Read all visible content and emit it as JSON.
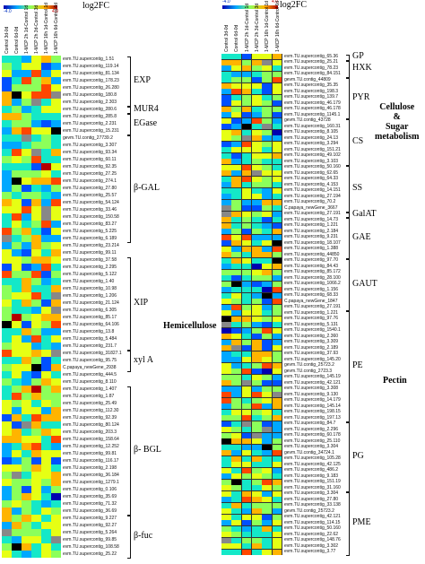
{
  "legend": {
    "title": "log2FC",
    "min_label": "-4.0",
    "max_label": "4.0"
  },
  "left_panel": {
    "columns": [
      "Control 3d-0d",
      "Control 6d-0d",
      "1-MCP 2h 1d-Control 1d",
      "1-MCP 2h 3d-Control 3d",
      "1-MCP 16h 1d-Control 1d",
      "1-MCP 16h 6d-Control 6d"
    ],
    "genes": [
      "evm.TU.supercontig_1.51",
      "evm.TU.supercontig_119.14",
      "evm.TU.supercontig_81.134",
      "evm.TU.supercontig_178.23",
      "evm.TU.supercontig_26.280",
      "evm.TU.supercontig_180.8",
      "evm.TU.supercontig_2.303",
      "evm.TU.supercontig_280.6",
      "evm.TU.supercontig_285.8",
      "evm.TU.supercontig_2.231",
      "evm.TU.supercontig_15.231",
      "gevm.TU.contig_27739.2",
      "evm.TU.supercontig_3.307",
      "evm.TU.supercontig_93.34",
      "evm.TU.supercontig_60.11",
      "evm.TU.supercontig_92.35",
      "evm.TU.supercontig_27.25",
      "evm.TU.supercontig_274.1",
      "evm.TU.supercontig_27.80",
      "evm.TU.supercontig_25.57",
      "evm.TU.supercontig_54.124",
      "evm.TU.supercontig_33.46",
      "evm.TU.supercontig_150.58",
      "evm.TU.supercontig_83.27",
      "evm.TU.supercontig_5.225",
      "evm.TU.supercontig_6.189",
      "evm.TU.supercontig_23.214",
      "evm.TU.supercontig_99.11",
      "evm.TU.supercontig_37.58",
      "evm.TU.supercontig_2.295",
      "evm.TU.supercontig_5.122",
      "evm.TU.supercontig_1.40",
      "evm.TU.supercontig_10.98",
      "evm.TU.supercontig_1.206",
      "evm.TU.supercontig_21.124",
      "evm.TU.supercontig_6.305",
      "evm.TU.supercontig_85.17",
      "evm.TU.supercontig_64.106",
      "evm.TU.supercontig_13.8",
      "evm.TU.supercontig_5.484",
      "evm.TU.supercontig_231.7",
      "evm.TU.supercontig_31827.1",
      "evm.TU.supercontig_95.75",
      "C.papaya_newGene_2938",
      "evm.TU.supercontig_444.5",
      "evm.TU.supercontig_8.110",
      "evm.TU.supercontig_1.407",
      "evm.TU.supercontig_1.87",
      "evm.TU.supercontig_25.49",
      "evm.TU.supercontig_112.30",
      "evm.TU.supercontig_92.39",
      "evm.TU.supercontig_80.124",
      "evm.TU.supercontig_203.3",
      "evm.TU.supercontig_158.64",
      "evm.TU.supercontig_12.252",
      "evm.TU.supercontig_99.81",
      "evm.TU.supercontig_116.17",
      "evm.TU.supercontig_2.198",
      "evm.TU.supercontig_36.184",
      "evm.TU.supercontig_1279.1",
      "evm.TU.supercontig_0.106",
      "evm.TU.supercontig_35.69",
      "evm.TU.supercontig_71.32",
      "evm.TU.supercontig_36.69",
      "evm.TU.supercontig_9.227",
      "evm.TU.supercontig_92.27",
      "evm.TU.supercontig_5.264",
      "evm.TU.supercontig_99.85",
      "evm.TU.supercontig_108.58",
      "evm.TU.supercontig_25.22"
    ],
    "groups": [
      {
        "label": "EXP"
      },
      {
        "label": "MUR4"
      },
      {
        "label": "EGase"
      },
      {
        "label": "β-GAL"
      },
      {
        "label": "XIP"
      },
      {
        "label": "xyl A"
      },
      {
        "label": "β- BGL"
      },
      {
        "label": "β-fuc"
      }
    ],
    "category": "Hemicellulose"
  },
  "right_panel": {
    "columns": [
      "Control 3d-0d",
      "Control 6d-0d",
      "1-MCP 2h 1d-Control 1d",
      "1-MCP 2h 3d-Control 3d",
      "1-MCP 16h 1d-Control 1d",
      "1-MCP 16h 6d-Control 6d"
    ],
    "genes": [
      "evm.TU.supercontig_65.36",
      "evm.TU.supercontig_25.21",
      "evm.TU.supercontig_78.23",
      "evm.TU.supercontig_84.151",
      "gevm.TU.contig_44809",
      "evm.TU.supercontig_35.35",
      "evm.TU.supercontig_198.3",
      "evm.TU.supercontig_139.7",
      "evm.TU.supercontig_46.179",
      "evm.TU.supercontig_46.178",
      "evm.TU.supercontig_1145.1",
      "gevm.TU.contig_43728",
      "evm.TU.supercontig_160.31",
      "evm.TU.supercontig_8.105",
      "evm.TU.supercontig_24.13",
      "evm.TU.supercontig_3.294",
      "evm.TU.supercontig_151.21",
      "evm.TU.supercontig_49.102",
      "evm.TU.supercontig_3.103",
      "evm.TU.supercontig_50.160",
      "evm.TU.supercontig_62.65",
      "evm.TU.supercontig_64.33",
      "evm.TU.supercontig_4.153",
      "evm.TU.supercontig_14.151",
      "evm.TU.supercontig_27.194",
      "evm.TU.supercontig_70.2",
      "C.papaya_newGene_3667",
      "evm.TU.supercontig_27.191",
      "evm.TU.supercontig_14.73",
      "evm.TU.supercontig_1.221",
      "evm.TU.supercontig_2.184",
      "evm.TU.supercontig_9.231",
      "evm.TU.supercontig_18.107",
      "evm.TU.supercontig_1.388",
      "evm.TU.supercontig_44850",
      "evm.TU.supercontig_97.70",
      "evm.TU.supercontig_84.43",
      "evm.TU.supercontig_85.172",
      "evm.TU.supercontig_28.100",
      "evm.TU.supercontig_1066.2",
      "evm.TU.supercontig_1.156",
      "evm.TU.supercontig_68.33",
      "C.papaya_newGene_1847",
      "evm.TU.supercontig_27.191",
      "evm.TU.supercontig_1.221",
      "evm.TU.supercontig_97.76",
      "evm.TU.supercontig_5.131",
      "evm.TU.supercontig_1540.1",
      "evm.TU.supercontig_2.360",
      "evm.TU.supercontig_3.309",
      "evm.TU.supercontig_2.189",
      "evm.TU.supercontig_37.93",
      "evm.TU.supercontig_145.20",
      "gevm.TU.contig_25723.2",
      "gevm.TU.contig_2723.3",
      "evm.TU.supercontig_145.19",
      "evm.TU.supercontig_42.121",
      "evm.TU.supercontig_3.308",
      "evm.TU.supercontig_9.130",
      "evm.TU.supercontig_14.179",
      "evm.TU.supercontig_145.14",
      "evm.TU.supercontig_198.15",
      "evm.TU.supercontig_197.13",
      "evm.TU.supercontig_84.7",
      "evm.TU.supercontig_2.296",
      "evm.TU.supercontig_60.178",
      "evm.TU.supercontig_25.110",
      "evm.TU.supercontig_3.304",
      "gevm.TU.contig_34724.1",
      "evm.TU.supercontig_105.28",
      "evm.TU.supercontig_42.125",
      "evm.TU.supercontig_486.2",
      "evm.TU.supercontig_9.183",
      "evm.TU.supercontig_151.19",
      "evm.TU.supercontig_31.160",
      "evm.TU.supercontig_3.304",
      "evm.TU.supercontig_27.80",
      "evm.TU.supercontig_33.138",
      "gevm.TU.contig_25723.2",
      "evm.TU.supercontig_42.121",
      "evm.TU.supercontig_114.15",
      "evm.TU.supercontig_50.160",
      "evm.TU.supercontig_22.62",
      "evm.TU.supercontig_148.76",
      "evm.TU.supercontig_3.302",
      "evm.TU.supercontig_3.77"
    ],
    "groups": [
      {
        "label": "GP"
      },
      {
        "label": "HXK"
      },
      {
        "label": "PYR"
      },
      {
        "label": "CS"
      },
      {
        "label": "SS"
      },
      {
        "label": "GalAT"
      },
      {
        "label": "GAE"
      },
      {
        "label": "GAUT"
      },
      {
        "label": "PE"
      },
      {
        "label": "PG"
      },
      {
        "label": "PME"
      }
    ],
    "categories": [
      {
        "lines": [
          "Cellulose",
          "&",
          "Sugar",
          "metabolism"
        ]
      },
      {
        "lines": [
          "Pectin"
        ]
      }
    ]
  },
  "colors": {
    "scale": [
      "#0000b0",
      "#0050ff",
      "#00a8ff",
      "#14e8c8",
      "#8cff5a",
      "#e6ff14",
      "#ffb400",
      "#ff4600",
      "#b40000"
    ],
    "missing": "#888888",
    "black": "#000000"
  }
}
